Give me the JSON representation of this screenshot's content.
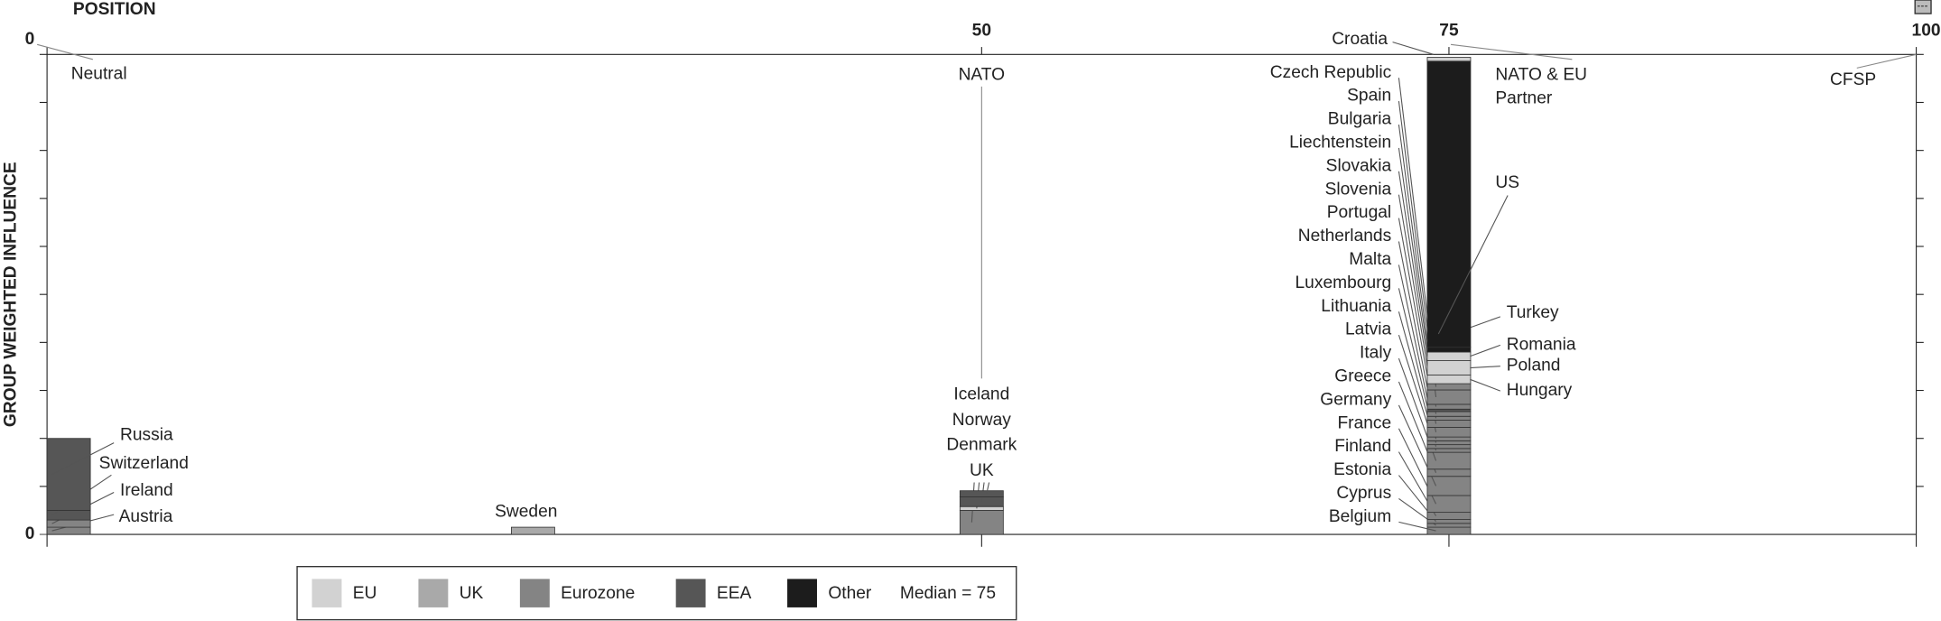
{
  "chart_data": {
    "type": "stacked-bar",
    "x_label": "POSITION",
    "y_label": "GROUP WEIGHTED INFLUENCE",
    "xlim": [
      0,
      100
    ],
    "xticks": [
      0,
      50,
      75,
      100
    ],
    "ylim": [
      0,
      10
    ],
    "yticks": [
      0
    ],
    "ytick_marks": [
      1,
      2,
      3,
      4,
      5,
      6,
      7,
      8,
      9,
      10
    ],
    "groups": [
      {
        "name": "EU",
        "color": "#d2d2d2"
      },
      {
        "name": "UK",
        "color": "#a9a9a9"
      },
      {
        "name": "Eurozone",
        "color": "#848484"
      },
      {
        "name": "EEA",
        "color": "#565656"
      },
      {
        "name": "Other",
        "color": "#1c1c1c"
      }
    ],
    "median_label": "Median = 75",
    "annotations": [
      {
        "text": [
          "Neutral"
        ],
        "x": 0
      },
      {
        "text": [
          "NATO"
        ],
        "x": 50
      },
      {
        "text": [
          "NATO & EU",
          "Partner"
        ],
        "x": 75
      },
      {
        "text": [
          "CFSP"
        ],
        "x": 100
      }
    ],
    "bars": [
      {
        "x": 0,
        "segments": [
          {
            "name": "Austria",
            "group": "Eurozone",
            "value": 0.15
          },
          {
            "name": "Ireland",
            "group": "Eurozone",
            "value": 0.15
          },
          {
            "name": "Switzerland",
            "group": "EEA",
            "value": 0.2
          },
          {
            "name": "Russia",
            "group": "EEA",
            "value": 1.5
          }
        ]
      },
      {
        "x": 26,
        "segments": [
          {
            "name": "Sweden",
            "group": "UK",
            "value": 0.15
          }
        ]
      },
      {
        "x": 50,
        "segments": [
          {
            "name": "UK",
            "group": "Eurozone",
            "value": 0.5
          },
          {
            "name": "Denmark",
            "group": "EU",
            "value": 0.08
          },
          {
            "name": "Norway",
            "group": "EEA",
            "value": 0.2
          },
          {
            "name": "Iceland",
            "group": "EEA",
            "value": 0.13
          }
        ]
      },
      {
        "x": 75,
        "segments": [
          {
            "name": "Belgium",
            "group": "Eurozone",
            "value": 0.15
          },
          {
            "name": "Cyprus",
            "group": "Eurozone",
            "value": 0.08
          },
          {
            "name": "Estonia",
            "group": "Eurozone",
            "value": 0.08
          },
          {
            "name": "Finland",
            "group": "Eurozone",
            "value": 0.15
          },
          {
            "name": "France",
            "group": "Eurozone",
            "value": 0.35
          },
          {
            "name": "Germany",
            "group": "Eurozone",
            "value": 0.4
          },
          {
            "name": "Greece",
            "group": "Eurozone",
            "value": 0.15
          },
          {
            "name": "Italy",
            "group": "Eurozone",
            "value": 0.35
          },
          {
            "name": "Latvia",
            "group": "Eurozone",
            "value": 0.08
          },
          {
            "name": "Lithuania",
            "group": "Eurozone",
            "value": 0.08
          },
          {
            "name": "Luxembourg",
            "group": "Eurozone",
            "value": 0.08
          },
          {
            "name": "Malta",
            "group": "Eurozone",
            "value": 0.08
          },
          {
            "name": "Netherlands",
            "group": "Eurozone",
            "value": 0.2
          },
          {
            "name": "Portugal",
            "group": "Eurozone",
            "value": 0.15
          },
          {
            "name": "Slovenia",
            "group": "Eurozone",
            "value": 0.08
          },
          {
            "name": "Slovakia",
            "group": "Eurozone",
            "value": 0.1
          },
          {
            "name": "Liechtenstein",
            "group": "EEA",
            "value": 0.05
          },
          {
            "name": "Bulgaria",
            "group": "Eurozone",
            "value": 0.1
          },
          {
            "name": "Spain",
            "group": "Eurozone",
            "value": 0.3
          },
          {
            "name": "Czech Republic",
            "group": "Eurozone",
            "value": 0.13
          },
          {
            "name": "Hungary",
            "group": "EU",
            "value": 0.18
          },
          {
            "name": "Poland",
            "group": "EU",
            "value": 0.3
          },
          {
            "name": "Romania",
            "group": "EU",
            "value": 0.18
          },
          {
            "name": "Turkey",
            "group": "Other",
            "value": 0.1
          },
          {
            "name": "US",
            "group": "Other",
            "value": 5.96
          },
          {
            "name": "Croatia",
            "group": "EU",
            "value": 0.08
          }
        ]
      }
    ]
  }
}
